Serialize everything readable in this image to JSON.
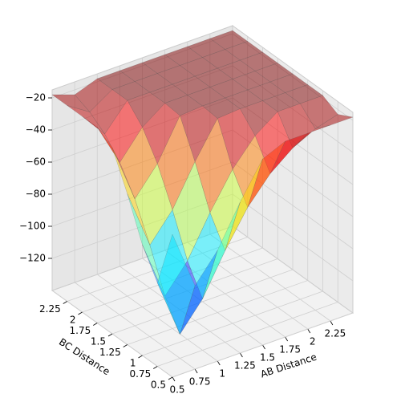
{
  "chart_data": {
    "type": "surface3d",
    "xlabel": "AB Distance",
    "ylabel": "BC Distance",
    "x": [
      0.5,
      0.75,
      1.0,
      1.25,
      1.5,
      1.75,
      2.0,
      2.25,
      2.5
    ],
    "y": [
      0.5,
      0.75,
      1.0,
      1.25,
      1.5,
      1.75,
      2.0,
      2.25,
      2.5
    ],
    "z": [
      [
        -51,
        -88,
        -71,
        -46,
        -24,
        -18,
        -18,
        -18,
        -18
      ],
      [
        -88,
        -125,
        -108,
        -83,
        -61,
        -45,
        -34,
        -27,
        -23
      ],
      [
        -71,
        -108,
        -91,
        -66,
        -44,
        -28,
        -18,
        -18,
        -18
      ],
      [
        -46,
        -83,
        -66,
        -41,
        -19,
        -18,
        -18,
        -18,
        -18
      ],
      [
        -24,
        -61,
        -44,
        -19,
        -18,
        -18,
        -18,
        -18,
        -18
      ],
      [
        -18,
        -45,
        -28,
        -18,
        -18,
        -18,
        -18,
        -18,
        -18
      ],
      [
        -18,
        -34,
        -18,
        -18,
        -18,
        -18,
        -18,
        -18,
        -18
      ],
      [
        -18,
        -27,
        -18,
        -18,
        -18,
        -18,
        -18,
        -18,
        -18
      ],
      [
        -18,
        -23,
        -18,
        -18,
        -18,
        -18,
        -18,
        -18,
        -18
      ]
    ],
    "xlim": [
      0.5,
      2.5
    ],
    "ylim": [
      0.5,
      2.5
    ],
    "zlim": [
      -140,
      -15
    ],
    "xticks": [
      0.5,
      0.75,
      1.0,
      1.25,
      1.5,
      1.75,
      2.0,
      2.25
    ],
    "yticks": [
      0.5,
      0.75,
      1.0,
      1.25,
      1.5,
      1.75,
      2.0,
      2.25
    ],
    "zticks": [
      {
        "value": -120,
        "label": "−120"
      },
      {
        "value": -100,
        "label": "−100"
      },
      {
        "value": -80,
        "label": "−80"
      },
      {
        "value": -60,
        "label": "−60"
      },
      {
        "value": -40,
        "label": "−40"
      },
      {
        "value": -20,
        "label": "−20"
      }
    ],
    "colormap": "jet",
    "alpha": 0.5,
    "grid": true
  }
}
